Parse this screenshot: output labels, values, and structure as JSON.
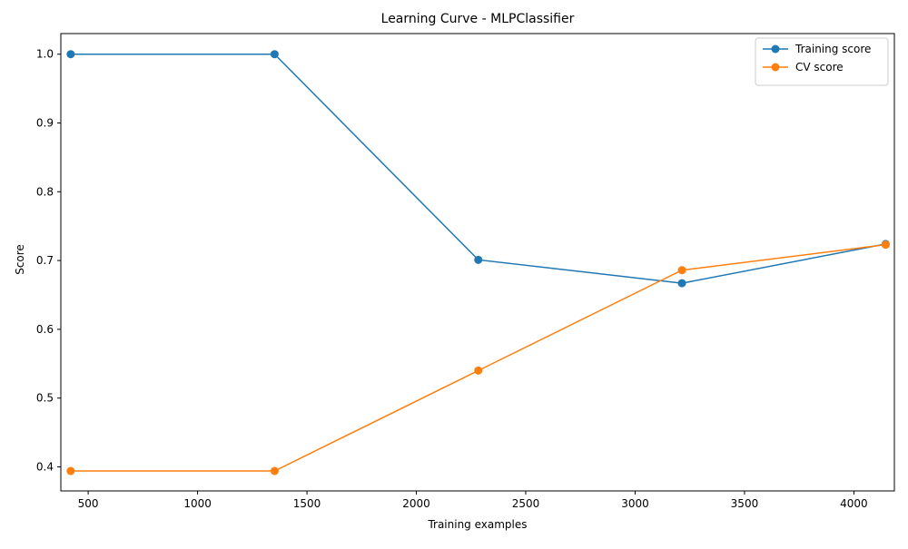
{
  "chart_data": {
    "type": "line",
    "title": "Learning Curve - MLPClassifier",
    "xlabel": "Training examples",
    "ylabel": "Score",
    "xlim": [
      375,
      4185
    ],
    "ylim": [
      0.365,
      1.03
    ],
    "xticks": [
      500,
      1000,
      1500,
      2000,
      2500,
      3000,
      3500,
      4000
    ],
    "yticks": [
      0.4,
      0.5,
      0.6,
      0.7,
      0.8,
      0.9,
      1.0
    ],
    "xtick_labels": [
      "500",
      "1000",
      "1500",
      "2000",
      "2500",
      "3000",
      "3500",
      "4000"
    ],
    "ytick_labels": [
      "0.4",
      "0.5",
      "0.6",
      "0.7",
      "0.8",
      "0.9",
      "1.0"
    ],
    "x": [
      420,
      1352,
      2283,
      3214,
      4145
    ],
    "series": [
      {
        "name": "Training score",
        "color": "#1f77b4",
        "values": [
          1.0,
          1.0,
          0.701,
          0.667,
          0.724
        ]
      },
      {
        "name": "CV score",
        "color": "#ff7f0e",
        "values": [
          0.394,
          0.394,
          0.54,
          0.686,
          0.723
        ]
      }
    ],
    "grid": false,
    "legend": "top-right"
  }
}
